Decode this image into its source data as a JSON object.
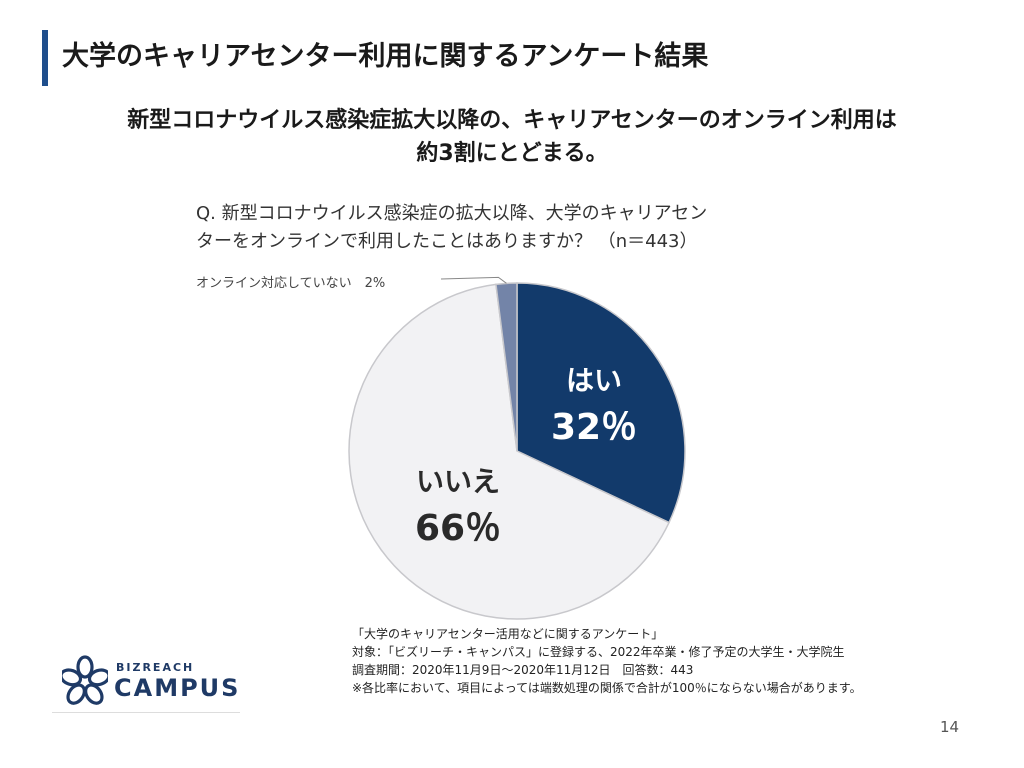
{
  "slide": {
    "title": "大学のキャリアセンター利用に関するアンケート結果",
    "headline_line1": "新型コロナウイルス感染症拡大以降の、キャリアセンターのオンライン利用は",
    "headline_line2": "約3割にとどまる。",
    "question_line1": "Q. 新型コロナウイルス感染症の拡大以降、大学のキャリアセン",
    "question_line2": "ターをオンラインで利用したことはありますか？ （n＝443）",
    "page_number": "14"
  },
  "chart_data": {
    "type": "pie",
    "title": "",
    "slices": [
      {
        "label": "はい",
        "value": 32,
        "value_text": "32％",
        "color": "#123a6b",
        "label_color": "#ffffff"
      },
      {
        "label": "いいえ",
        "value": 66,
        "value_text": "66％",
        "color": "#f2f2f4",
        "label_color": "#2a2a2a"
      },
      {
        "label": "オンライン対応していない",
        "value": 2,
        "value_text": "2%",
        "color": "#7384a8",
        "label_color": "#444444"
      }
    ]
  },
  "footnote": {
    "line1": "「大学のキャリアセンター活用などに関するアンケート」",
    "line2": "対象：「ビズリーチ・キャンパス」に登録する、2022年卒業・修了予定の大学生・大学院生",
    "line3": "調査期間：2020年11月9日〜2020年11月12日　回答数：443",
    "line4": "※各比率において、項目によっては端数処理の関係で合計が100％にならない場合があります。"
  },
  "logo": {
    "sub": "BIZREACH",
    "main": "CAMPUS"
  }
}
